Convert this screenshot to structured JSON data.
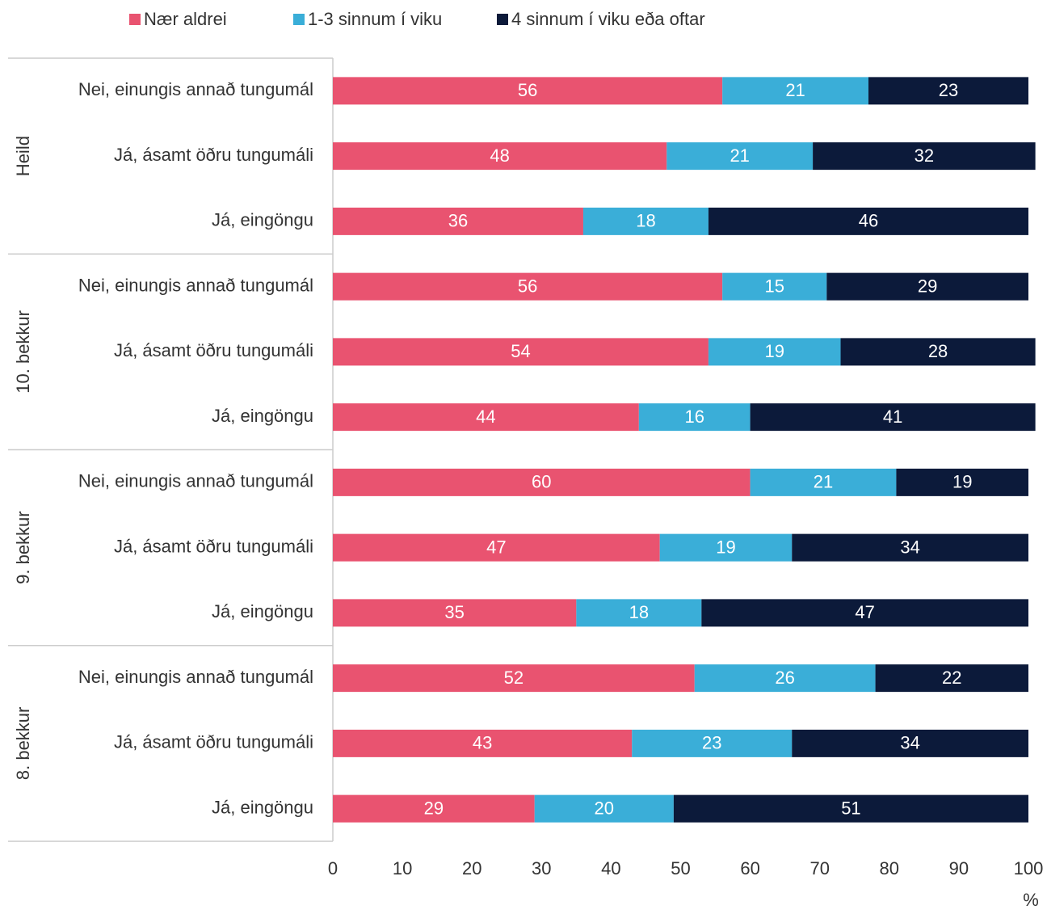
{
  "chart_data": {
    "type": "stacked_bar_horizontal",
    "groups": [
      "Heild",
      "10. bekkur",
      "9. bekkur",
      "8. bekkur"
    ],
    "categories": [
      "Nei, einungis annað tungumál",
      "Já, ásamt öðru tungumáli",
      "Já, eingöngu",
      "Nei, einungis annað tungumál",
      "Já, ásamt öðru tungumáli",
      "Já, eingöngu",
      "Nei, einungis annað tungumál",
      "Já, ásamt öðru tungumáli",
      "Já, eingöngu",
      "Nei, einungis annað tungumál",
      "Já, ásamt öðru tungumáli",
      "Já, eingöngu"
    ],
    "series": [
      {
        "name": "Nær aldrei",
        "color": "#e95370",
        "values": [
          56,
          48,
          36,
          56,
          54,
          44,
          60,
          47,
          35,
          52,
          43,
          29
        ]
      },
      {
        "name": "1-3 sinnum í viku",
        "color": "#3aaed8",
        "values": [
          21,
          21,
          18,
          15,
          19,
          16,
          21,
          19,
          18,
          26,
          23,
          20
        ]
      },
      {
        "name": "4 sinnum í viku eða oftar",
        "color": "#0c1a3a",
        "values": [
          23,
          32,
          46,
          29,
          28,
          41,
          19,
          34,
          47,
          22,
          34,
          51
        ]
      }
    ],
    "x_label": "%",
    "xlim": [
      0,
      100
    ],
    "xticks": [
      0,
      10,
      20,
      30,
      40,
      50,
      60,
      70,
      80,
      90,
      100
    ]
  }
}
